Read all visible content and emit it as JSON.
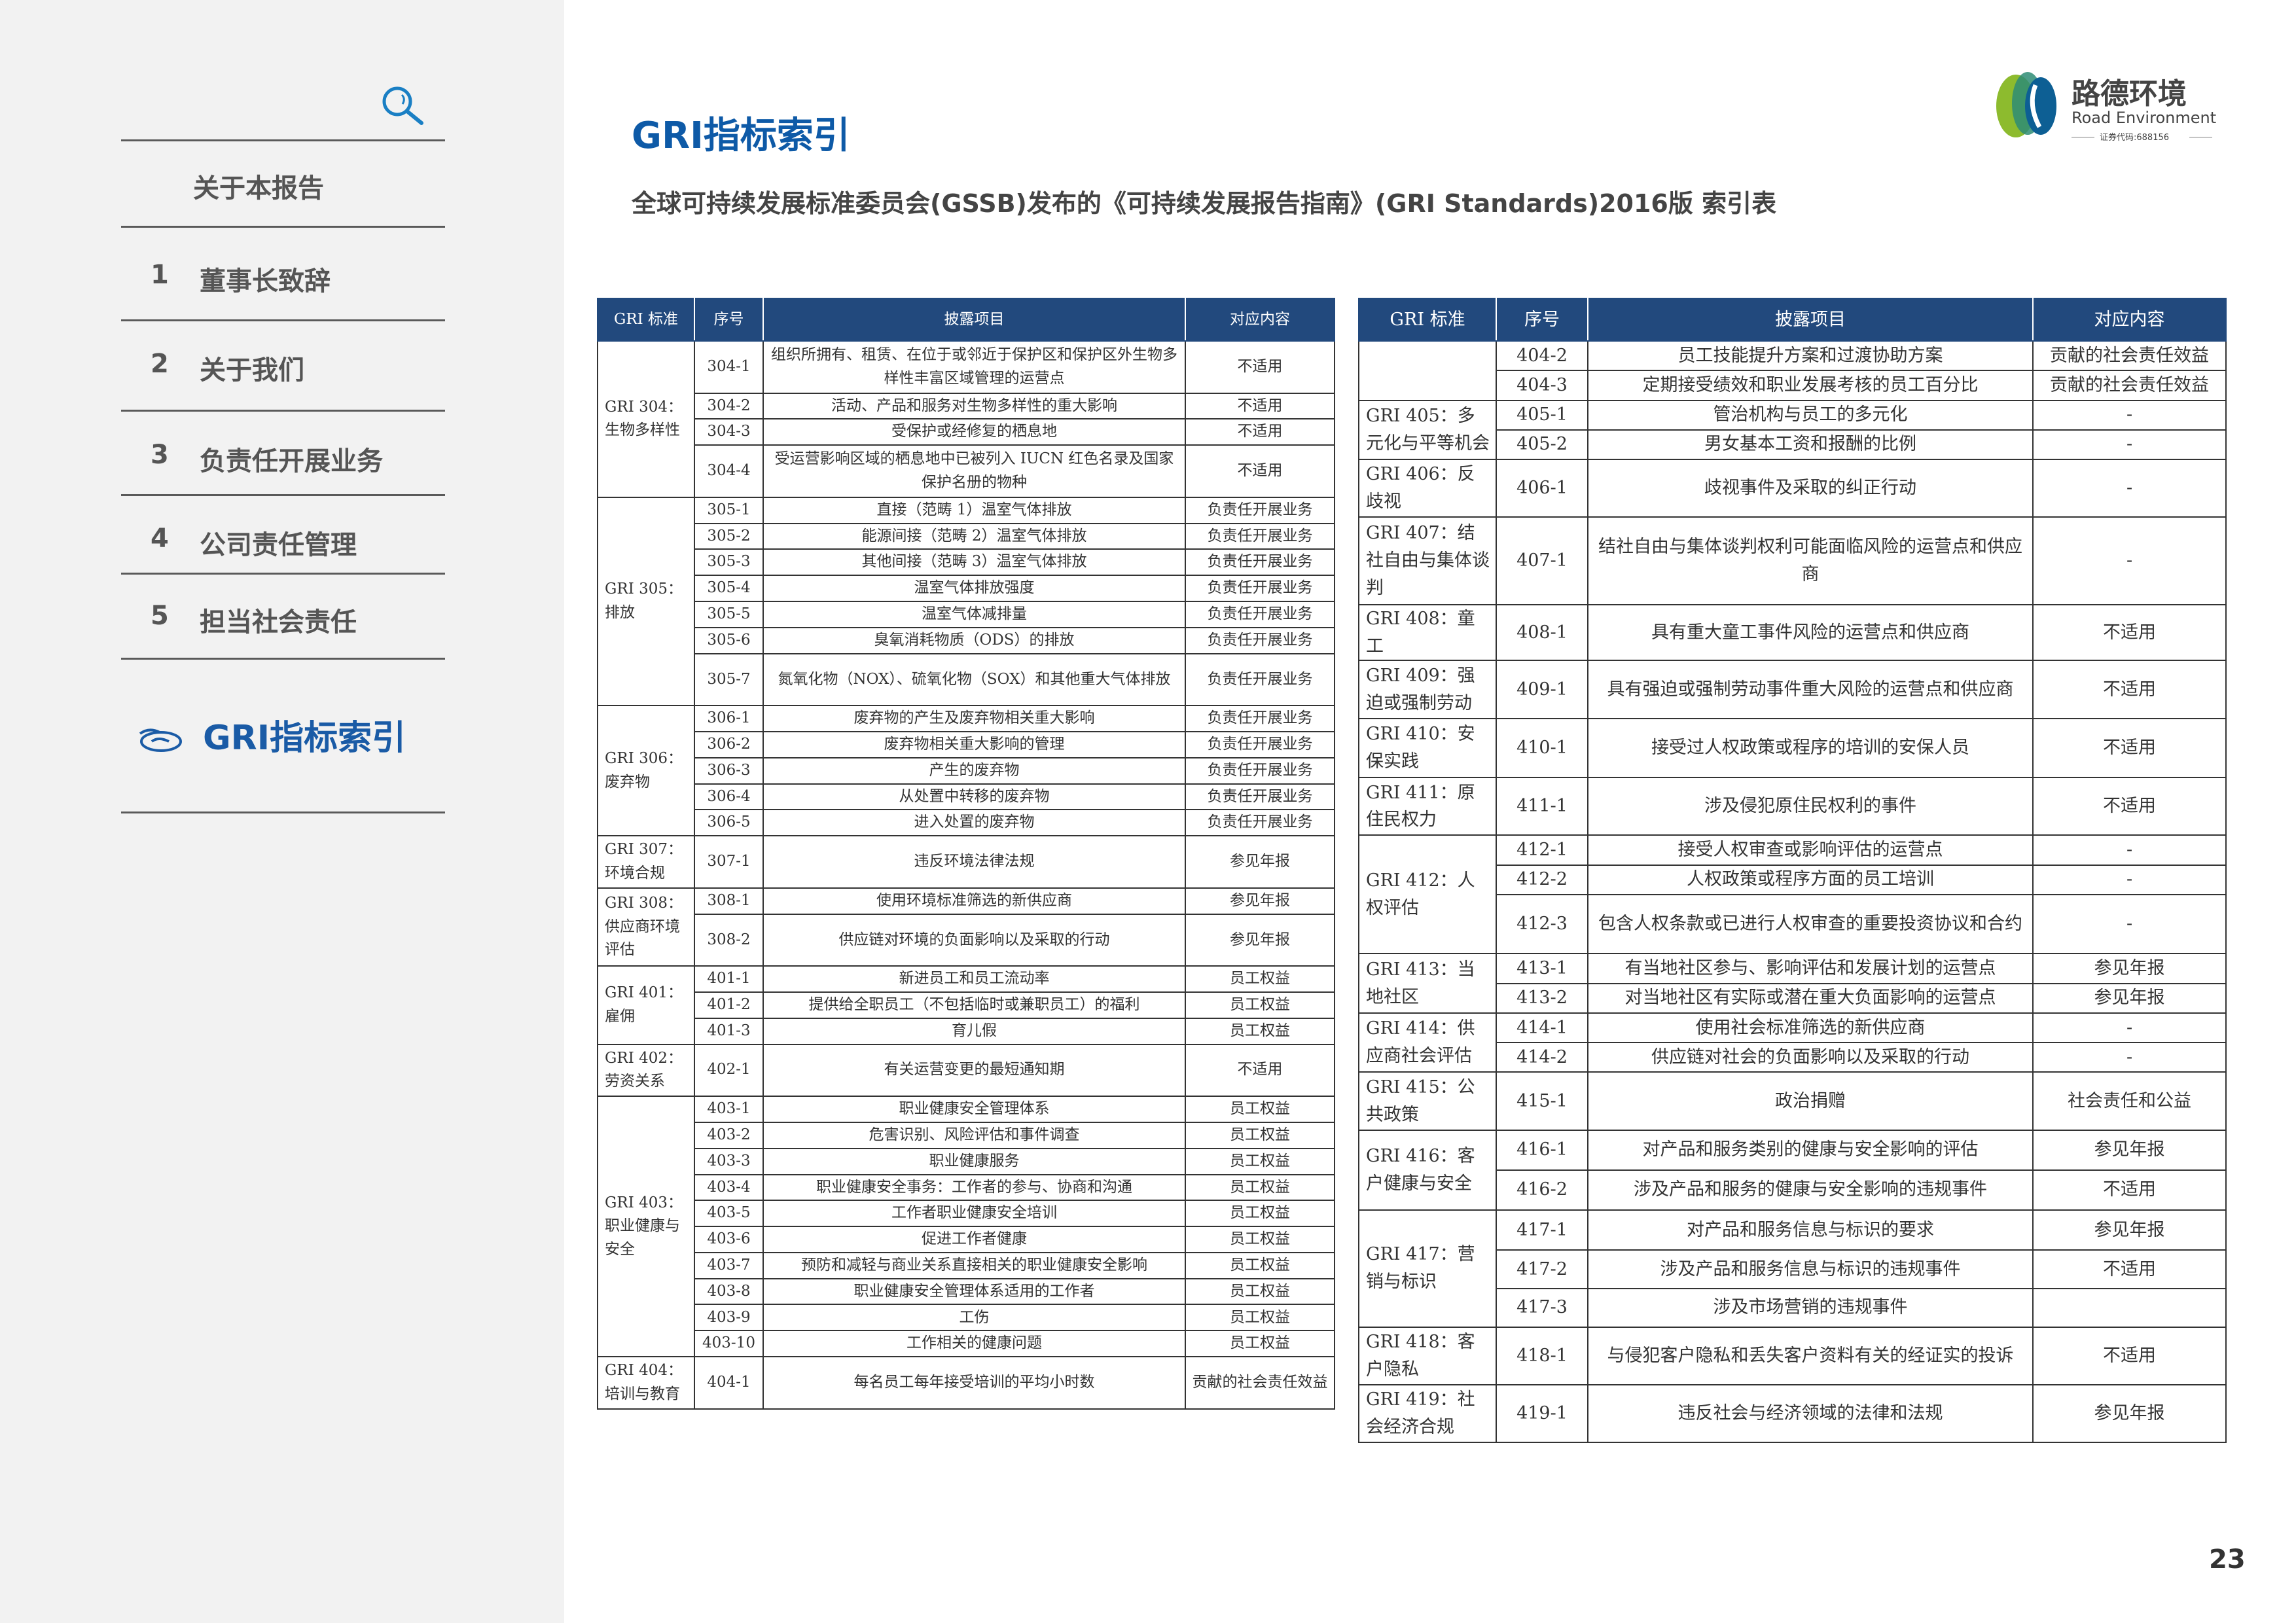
{
  "sidebar": {
    "search_icon": "magnifier-icon",
    "about": "关于本报告",
    "items": [
      {
        "num": "1",
        "label": "董事长致辞"
      },
      {
        "num": "2",
        "label": "关于我们"
      },
      {
        "num": "3",
        "label": "负责任开展业务"
      },
      {
        "num": "4",
        "label": "公司责任管理"
      },
      {
        "num": "5",
        "label": "担当社会责任"
      }
    ],
    "active": "GRI指标索引",
    "accent": "#1a5ba6"
  },
  "header": {
    "title": "GRI指标索引",
    "subtitle": "全球可持续发展标准委员会(GSSB)发布的《可持续发展报告指南》(GRI Standards)2016版 索引表"
  },
  "logo": {
    "cn": "路德环境",
    "en": "Road Environment",
    "code": "证券代码:688156"
  },
  "table_header": [
    "GRI 标准",
    "序号",
    "披露项目",
    "对应内容"
  ],
  "header_color": "#22497d",
  "left_table": [
    {
      "label": "GRI 304：生物多样性",
      "rows": [
        {
          "code": "304-1",
          "item": "组织所拥有、租赁、在位于或邻近于保护区和保护区外生物多样性丰富区域管理的运营点",
          "content": "不适用"
        },
        {
          "code": "304-2",
          "item": "活动、产品和服务对生物多样性的重大影响",
          "content": "不适用"
        },
        {
          "code": "304-3",
          "item": "受保护或经修复的栖息地",
          "content": "不适用"
        },
        {
          "code": "304-4",
          "item": "受运营影响区域的栖息地中已被列入 IUCN 红色名录及国家保护名册的物种",
          "content": "不适用"
        }
      ]
    },
    {
      "label": "GRI 305：排放",
      "rows": [
        {
          "code": "305-1",
          "item": "直接（范畴 1）温室气体排放",
          "content": "负责任开展业务"
        },
        {
          "code": "305-2",
          "item": "能源间接（范畴 2）温室气体排放",
          "content": "负责任开展业务"
        },
        {
          "code": "305-3",
          "item": "其他间接（范畴 3）温室气体排放",
          "content": "负责任开展业务"
        },
        {
          "code": "305-4",
          "item": "温室气体排放强度",
          "content": "负责任开展业务"
        },
        {
          "code": "305-5",
          "item": "温室气体减排量",
          "content": "负责任开展业务"
        },
        {
          "code": "305-6",
          "item": "臭氧消耗物质（ODS）的排放",
          "content": "负责任开展业务"
        },
        {
          "code": "305-7",
          "item": "氮氧化物（NOX）、硫氧化物（SOX）和其他重大气体排放",
          "content": "负责任开展业务"
        }
      ]
    },
    {
      "label": "GRI 306：废弃物",
      "rows": [
        {
          "code": "306-1",
          "item": "废弃物的产生及废弃物相关重大影响",
          "content": "负责任开展业务"
        },
        {
          "code": "306-2",
          "item": "废弃物相关重大影响的管理",
          "content": "负责任开展业务"
        },
        {
          "code": "306-3",
          "item": "产生的废弃物",
          "content": "负责任开展业务"
        },
        {
          "code": "306-4",
          "item": "从处置中转移的废弃物",
          "content": "负责任开展业务"
        },
        {
          "code": "306-5",
          "item": "进入处置的废弃物",
          "content": "负责任开展业务"
        }
      ]
    },
    {
      "label": "GRI 307：环境合规",
      "rows": [
        {
          "code": "307-1",
          "item": "违反环境法律法规",
          "content": "参见年报"
        }
      ]
    },
    {
      "label": "GRI 308：供应商环境评估",
      "rows": [
        {
          "code": "308-1",
          "item": "使用环境标准筛选的新供应商",
          "content": "参见年报"
        },
        {
          "code": "308-2",
          "item": "供应链对环境的负面影响以及采取的行动",
          "content": "参见年报"
        }
      ]
    },
    {
      "label": "GRI 401：雇佣",
      "rows": [
        {
          "code": "401-1",
          "item": "新进员工和员工流动率",
          "content": "员工权益"
        },
        {
          "code": "401-2",
          "item": "提供给全职员工（不包括临时或兼职员工）的福利",
          "content": "员工权益"
        },
        {
          "code": "401-3",
          "item": "育儿假",
          "content": "员工权益"
        }
      ]
    },
    {
      "label": "GRI 402：劳资关系",
      "rows": [
        {
          "code": "402-1",
          "item": "有关运营变更的最短通知期",
          "content": "不适用"
        }
      ]
    },
    {
      "label": "GRI 403：职业健康与安全",
      "rows": [
        {
          "code": "403-1",
          "item": "职业健康安全管理体系",
          "content": "员工权益"
        },
        {
          "code": "403-2",
          "item": "危害识别、风险评估和事件调查",
          "content": "员工权益"
        },
        {
          "code": "403-3",
          "item": "职业健康服务",
          "content": "员工权益"
        },
        {
          "code": "403-4",
          "item": "职业健康安全事务：工作者的参与、协商和沟通",
          "content": "员工权益"
        },
        {
          "code": "403-5",
          "item": "工作者职业健康安全培训",
          "content": "员工权益"
        },
        {
          "code": "403-6",
          "item": "促进工作者健康",
          "content": "员工权益"
        },
        {
          "code": "403-7",
          "item": "预防和减轻与商业关系直接相关的职业健康安全影响",
          "content": "员工权益"
        },
        {
          "code": "403-8",
          "item": "职业健康安全管理体系适用的工作者",
          "content": "员工权益"
        },
        {
          "code": "403-9",
          "item": "工伤",
          "content": "员工权益"
        },
        {
          "code": "403-10",
          "item": "工作相关的健康问题",
          "content": "员工权益"
        }
      ]
    },
    {
      "label": "GRI 404：培训与教育",
      "rows": [
        {
          "code": "404-1",
          "item": "每名员工每年接受培训的平均小时数",
          "content": "贡献的社会责任效益"
        }
      ]
    }
  ],
  "right_table": [
    {
      "label": "",
      "rows": [
        {
          "code": "404-2",
          "item": "员工技能提升方案和过渡协助方案",
          "content": "贡献的社会责任效益"
        },
        {
          "code": "404-3",
          "item": "定期接受绩效和职业发展考核的员工百分比",
          "content": "贡献的社会责任效益"
        }
      ]
    },
    {
      "label": "GRI 405：多元化与平等机会",
      "rows": [
        {
          "code": "405-1",
          "item": "管治机构与员工的多元化",
          "content": "-"
        },
        {
          "code": "405-2",
          "item": "男女基本工资和报酬的比例",
          "content": "-"
        }
      ]
    },
    {
      "label": "GRI 406：反歧视",
      "rows": [
        {
          "code": "406-1",
          "item": "歧视事件及采取的纠正行动",
          "content": "-"
        }
      ]
    },
    {
      "label": "GRI 407：结社自由与集体谈判",
      "rows": [
        {
          "code": "407-1",
          "item": "结社自由与集体谈判权利可能面临风险的运营点和供应商",
          "content": "-"
        }
      ]
    },
    {
      "label": "GRI 408：童工",
      "rows": [
        {
          "code": "408-1",
          "item": "具有重大童工事件风险的运营点和供应商",
          "content": "不适用"
        }
      ]
    },
    {
      "label": "GRI 409：强迫或强制劳动",
      "rows": [
        {
          "code": "409-1",
          "item": "具有强迫或强制劳动事件重大风险的运营点和供应商",
          "content": "不适用"
        }
      ]
    },
    {
      "label": "GRI 410：安保实践",
      "rows": [
        {
          "code": "410-1",
          "item": "接受过人权政策或程序的培训的安保人员",
          "content": "不适用"
        }
      ]
    },
    {
      "label": "GRI 411：原住民权力",
      "rows": [
        {
          "code": "411-1",
          "item": "涉及侵犯原住民权利的事件",
          "content": "不适用"
        }
      ]
    },
    {
      "label": "GRI 412：人权评估",
      "rows": [
        {
          "code": "412-1",
          "item": "接受人权审查或影响评估的运营点",
          "content": "-"
        },
        {
          "code": "412-2",
          "item": "人权政策或程序方面的员工培训",
          "content": "-"
        },
        {
          "code": "412-3",
          "item": "包含人权条款或已进行人权审查的重要投资协议和合约",
          "content": "-"
        }
      ]
    },
    {
      "label": "GRI 413：当地社区",
      "rows": [
        {
          "code": "413-1",
          "item": "有当地社区参与、影响评估和发展计划的运营点",
          "content": "参见年报"
        },
        {
          "code": "413-2",
          "item": "对当地社区有实际或潜在重大负面影响的运营点",
          "content": "参见年报"
        }
      ]
    },
    {
      "label": "GRI 414：供应商社会评估",
      "rows": [
        {
          "code": "414-1",
          "item": "使用社会标准筛选的新供应商",
          "content": "-"
        },
        {
          "code": "414-2",
          "item": "供应链对社会的负面影响以及采取的行动",
          "content": "-"
        }
      ]
    },
    {
      "label": "GRI 415：公共政策",
      "rows": [
        {
          "code": "415-1",
          "item": "政治捐赠",
          "content": "社会责任和公益"
        }
      ]
    },
    {
      "label": "GRI 416：客户健康与安全",
      "rows": [
        {
          "code": "416-1",
          "item": "对产品和服务类别的健康与安全影响的评估",
          "content": "参见年报"
        },
        {
          "code": "416-2",
          "item": "涉及产品和服务的健康与安全影响的违规事件",
          "content": "不适用"
        }
      ]
    },
    {
      "label": "GRI 417：营销与标识",
      "rows": [
        {
          "code": "417-1",
          "item": "对产品和服务信息与标识的要求",
          "content": "参见年报"
        },
        {
          "code": "417-2",
          "item": "涉及产品和服务信息与标识的违规事件",
          "content": "不适用"
        },
        {
          "code": "417-3",
          "item": "涉及市场营销的违规事件",
          "content": ""
        }
      ]
    },
    {
      "label": "GRI 418：客户隐私",
      "rows": [
        {
          "code": "418-1",
          "item": "与侵犯客户隐私和丢失客户资料有关的经证实的投诉",
          "content": "不适用"
        }
      ]
    },
    {
      "label": "GRI 419：社会经济合规",
      "rows": [
        {
          "code": "419-1",
          "item": "违反社会与经济领域的法律和法规",
          "content": "参见年报"
        }
      ]
    }
  ],
  "page_number": "23"
}
